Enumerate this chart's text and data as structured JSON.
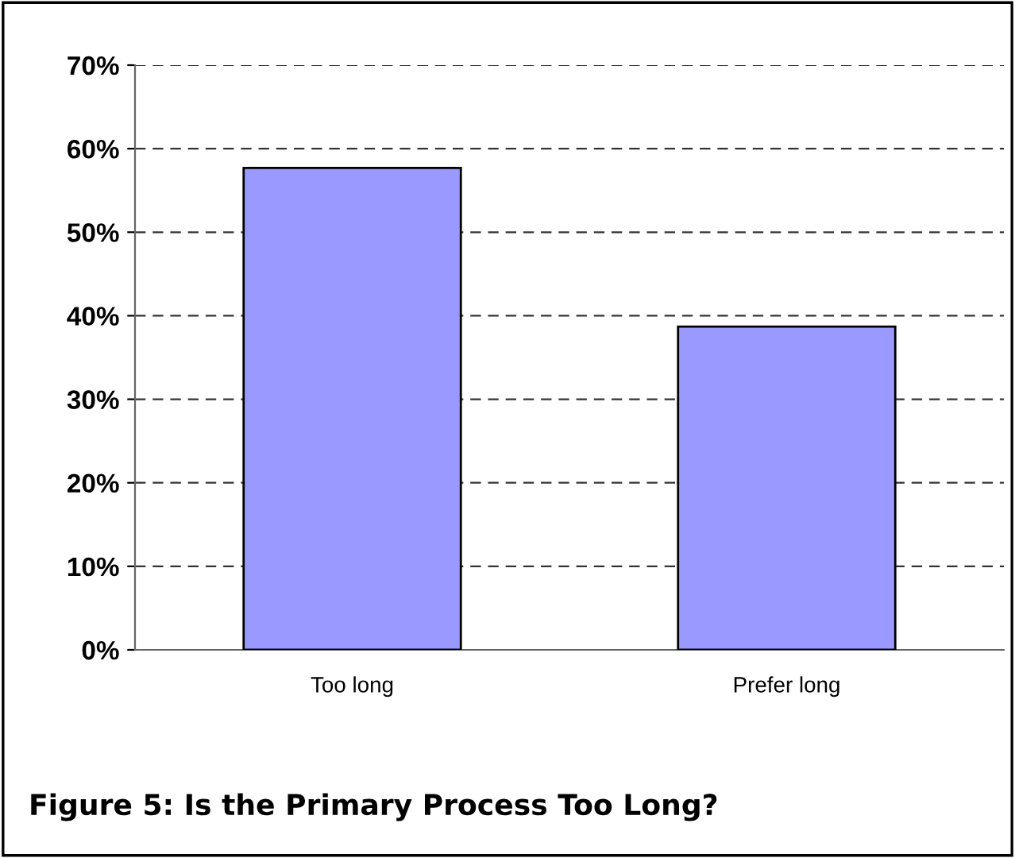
{
  "chart_data": {
    "type": "bar",
    "title": "Figure 5: Is the Primary Process Too Long?",
    "categories": [
      "Too long",
      "Prefer long"
    ],
    "values": [
      57.7,
      38.7
    ],
    "color": "#9999ff",
    "ylim": [
      0,
      70
    ],
    "yticks": [
      {
        "value": 0,
        "label": "0%"
      },
      {
        "value": 10,
        "label": "10%"
      },
      {
        "value": 20,
        "label": "20%"
      },
      {
        "value": 30,
        "label": "30%"
      },
      {
        "value": 40,
        "label": "40%"
      },
      {
        "value": 50,
        "label": "50%"
      },
      {
        "value": 60,
        "label": "60%"
      },
      {
        "value": 70,
        "label": "70%"
      }
    ],
    "grid": "y",
    "line_style": "dashed"
  }
}
